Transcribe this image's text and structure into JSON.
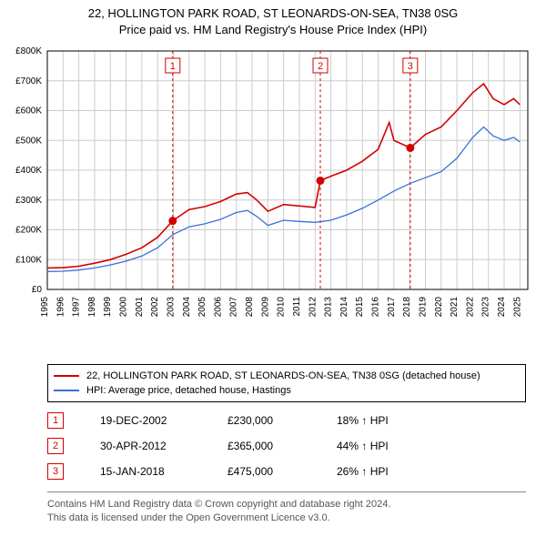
{
  "title": {
    "line1": "22, HOLLINGTON PARK ROAD, ST LEONARDS-ON-SEA, TN38 0SG",
    "line2": "Price paid vs. HM Land Registry's House Price Index (HPI)",
    "fontsize": 13,
    "color": "#000000"
  },
  "chart": {
    "type": "line",
    "background_color": "#ffffff",
    "plot_border_color": "#000000",
    "grid_color": "#cccccc",
    "x": {
      "min": 1995,
      "max": 2025.5,
      "ticks": [
        1995,
        1996,
        1997,
        1998,
        1999,
        2000,
        2001,
        2002,
        2003,
        2004,
        2005,
        2006,
        2007,
        2008,
        2009,
        2010,
        2011,
        2012,
        2013,
        2014,
        2015,
        2016,
        2017,
        2018,
        2019,
        2020,
        2021,
        2022,
        2023,
        2024,
        2025
      ],
      "tick_label_fontsize": 10,
      "tick_label_rotation": -90
    },
    "y": {
      "min": 0,
      "max": 800000,
      "ticks": [
        0,
        100000,
        200000,
        300000,
        400000,
        500000,
        600000,
        700000,
        800000
      ],
      "tick_labels": [
        "£0",
        "£100K",
        "£200K",
        "£300K",
        "£400K",
        "£500K",
        "£600K",
        "£700K",
        "£800K"
      ],
      "tick_label_fontsize": 10
    },
    "series": [
      {
        "name": "property",
        "label": "22, HOLLINGTON PARK ROAD, ST LEONARDS-ON-SEA, TN38 0SG (detached house)",
        "color": "#d40000",
        "line_width": 1.6,
        "points": [
          [
            1995,
            72000
          ],
          [
            1996,
            73000
          ],
          [
            1997,
            78000
          ],
          [
            1998,
            88000
          ],
          [
            1999,
            100000
          ],
          [
            2000,
            118000
          ],
          [
            2001,
            140000
          ],
          [
            2002,
            175000
          ],
          [
            2002.96,
            230000
          ],
          [
            2003.5,
            250000
          ],
          [
            2004,
            268000
          ],
          [
            2005,
            278000
          ],
          [
            2006,
            295000
          ],
          [
            2007,
            320000
          ],
          [
            2007.7,
            325000
          ],
          [
            2008.3,
            300000
          ],
          [
            2009,
            262000
          ],
          [
            2010,
            285000
          ],
          [
            2011,
            280000
          ],
          [
            2012,
            275000
          ],
          [
            2012.33,
            365000
          ],
          [
            2013,
            380000
          ],
          [
            2014,
            400000
          ],
          [
            2015,
            430000
          ],
          [
            2016,
            470000
          ],
          [
            2016.7,
            560000
          ],
          [
            2017,
            500000
          ],
          [
            2018.04,
            475000
          ],
          [
            2019,
            520000
          ],
          [
            2020,
            545000
          ],
          [
            2021,
            600000
          ],
          [
            2022,
            660000
          ],
          [
            2022.7,
            690000
          ],
          [
            2023.3,
            640000
          ],
          [
            2024,
            620000
          ],
          [
            2024.6,
            640000
          ],
          [
            2025,
            620000
          ]
        ]
      },
      {
        "name": "hpi",
        "label": "HPI: Average price, detached house, Hastings",
        "color": "#3a6fd8",
        "line_width": 1.3,
        "points": [
          [
            1995,
            60000
          ],
          [
            1996,
            61000
          ],
          [
            1997,
            65000
          ],
          [
            1998,
            72000
          ],
          [
            1999,
            82000
          ],
          [
            2000,
            95000
          ],
          [
            2001,
            112000
          ],
          [
            2002,
            140000
          ],
          [
            2003,
            185000
          ],
          [
            2004,
            210000
          ],
          [
            2005,
            220000
          ],
          [
            2006,
            235000
          ],
          [
            2007,
            258000
          ],
          [
            2007.7,
            265000
          ],
          [
            2008.3,
            245000
          ],
          [
            2009,
            215000
          ],
          [
            2010,
            232000
          ],
          [
            2011,
            228000
          ],
          [
            2012,
            225000
          ],
          [
            2013,
            232000
          ],
          [
            2014,
            250000
          ],
          [
            2015,
            272000
          ],
          [
            2016,
            300000
          ],
          [
            2017,
            330000
          ],
          [
            2018,
            355000
          ],
          [
            2019,
            375000
          ],
          [
            2020,
            395000
          ],
          [
            2021,
            440000
          ],
          [
            2022,
            510000
          ],
          [
            2022.7,
            545000
          ],
          [
            2023.3,
            515000
          ],
          [
            2024,
            500000
          ],
          [
            2024.6,
            510000
          ],
          [
            2025,
            495000
          ]
        ]
      }
    ],
    "price_markers": [
      {
        "n": "1",
        "x": 2002.96,
        "y": 230000,
        "dot_color": "#d40000",
        "line_color": "#d40000"
      },
      {
        "n": "2",
        "x": 2012.33,
        "y": 365000,
        "dot_color": "#d40000",
        "line_color": "#d40000"
      },
      {
        "n": "3",
        "x": 2018.04,
        "y": 475000,
        "dot_color": "#d40000",
        "line_color": "#d40000"
      }
    ],
    "marker_badge": {
      "border_color": "#d40000",
      "text_color": "#d40000",
      "size": 16,
      "fontsize": 11
    }
  },
  "legend": {
    "border_color": "#000000",
    "fontsize": 11,
    "items": [
      {
        "color": "#d40000",
        "label": "22, HOLLINGTON PARK ROAD, ST LEONARDS-ON-SEA, TN38 0SG (detached house)"
      },
      {
        "color": "#3a6fd8",
        "label": "HPI: Average price, detached house, Hastings"
      }
    ]
  },
  "markers_table": {
    "arrow_glyph": "↑",
    "suffix": "HPI",
    "fontsize": 12,
    "rows": [
      {
        "n": "1",
        "date": "19-DEC-2002",
        "price": "£230,000",
        "pct": "18%"
      },
      {
        "n": "2",
        "date": "30-APR-2012",
        "price": "£365,000",
        "pct": "44%"
      },
      {
        "n": "3",
        "date": "15-JAN-2018",
        "price": "£475,000",
        "pct": "26%"
      }
    ]
  },
  "attribution": {
    "line1": "Contains HM Land Registry data © Crown copyright and database right 2024.",
    "line2": "This data is licensed under the Open Government Licence v3.0.",
    "fontsize": 11,
    "color": "#555555"
  }
}
